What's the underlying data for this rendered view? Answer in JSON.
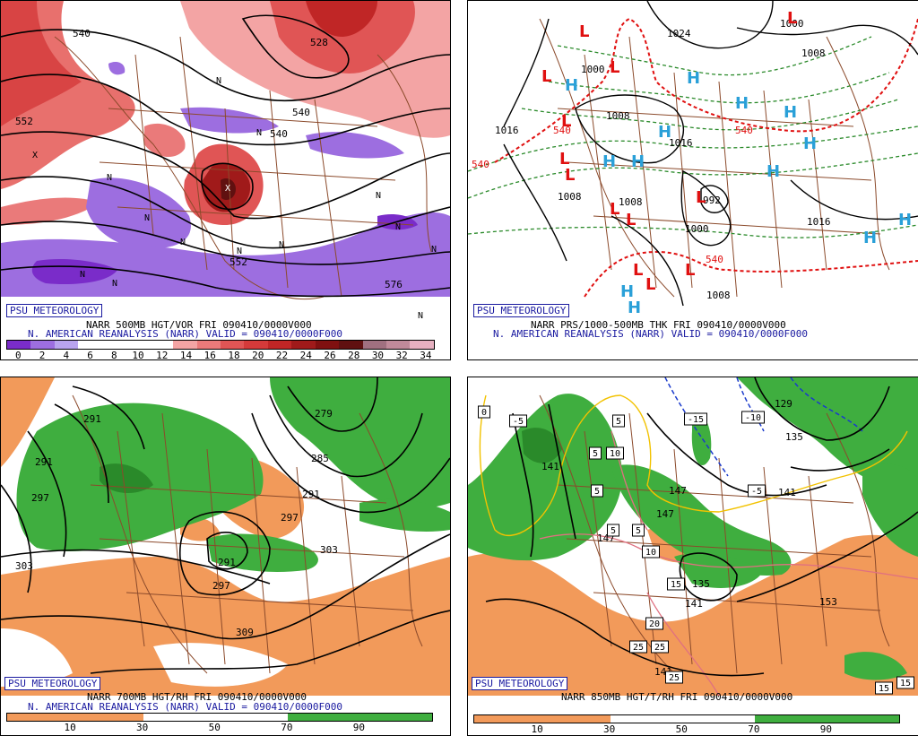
{
  "panels": {
    "vor": {
      "badge": "PSU METEOROLOGY",
      "title_line1": "NARR 500MB HGT/VOR FRI 090410/0000V000",
      "title_line2": "N. AMERICAN REANALYSIS (NARR) VALID = 090410/0000F000",
      "colorbar_labels": [
        "0",
        "2",
        "4",
        "6",
        "8",
        "10",
        "12",
        "14",
        "16",
        "18",
        "20",
        "22",
        "24",
        "26",
        "28",
        "30",
        "32",
        "34"
      ],
      "contour_labels": [
        "540",
        "528",
        "552",
        "540",
        "540",
        "552",
        "576"
      ],
      "markers": [
        "N",
        "N",
        "N",
        "N",
        "N",
        "N",
        "N",
        "N",
        "N",
        "N",
        "N",
        "N",
        "N",
        "X",
        "X"
      ]
    },
    "thk": {
      "badge": "PSU METEOROLOGY",
      "title_line1": "NARR PRS/1000-500MB THK FRI 090410/0000V000",
      "title_line2": "N. AMERICAN REANALYSIS (NARR) VALID = 090410/0000F000",
      "contour_labels": [
        "1024",
        "1000",
        "1008",
        "1000",
        "1016",
        "1008",
        "1016",
        "1008",
        "1008",
        "992",
        "1000",
        "1016",
        "1008",
        "540",
        "540",
        "540",
        "540"
      ],
      "highs": [
        "H",
        "H",
        "H",
        "H",
        "H",
        "H",
        "H",
        "H",
        "H",
        "H",
        "H",
        "H",
        "H"
      ],
      "lows": [
        "L",
        "L",
        "L",
        "L",
        "L",
        "L",
        "L",
        "L",
        "L",
        "L",
        "L",
        "L",
        "L"
      ]
    },
    "rh700": {
      "badge": "PSU METEOROLOGY",
      "title_line1": "NARR 700MB HGT/RH FRI 090410/0000V000",
      "title_line2": "N. AMERICAN REANALYSIS (NARR) VALID = 090410/0000F000",
      "colorbar_labels": [
        "10",
        "30",
        "50",
        "70",
        "90"
      ],
      "contour_labels": [
        "291",
        "291",
        "297",
        "279",
        "285",
        "291",
        "297",
        "303",
        "303",
        "291",
        "297",
        "309"
      ]
    },
    "t850": {
      "badge": "PSU METEOROLOGY",
      "title_line1": "NARR 850MB HGT/T/RH FRI 090410/0000V000",
      "colorbar_labels": [
        "10",
        "30",
        "50",
        "70",
        "90"
      ],
      "contour_labels": [
        "129",
        "135",
        "141",
        "147",
        "141",
        "147",
        "135",
        "141",
        "153",
        "147",
        "141"
      ],
      "temp_boxes": [
        "0",
        "-5",
        "5",
        "5",
        "-15",
        "-10",
        "-5",
        "10",
        "5",
        "5",
        "5",
        "10",
        "15",
        "20",
        "25",
        "25",
        "25",
        "15",
        "15"
      ]
    }
  },
  "colors": {
    "vor_scale": [
      "#7a2cc9",
      "#9d6ee0",
      "#b9a4ee",
      "#ffffff",
      "#ffffff",
      "#ffffff",
      "#ffffff",
      "#f3a4a4",
      "#ea7a7a",
      "#e05555",
      "#d43a3a",
      "#c02626",
      "#a01a1a",
      "#801010",
      "#601010",
      "#a07080",
      "#c08a9a",
      "#e6b0c0"
    ],
    "rh_dry": "#f29a5a",
    "rh_moist": "#3fae3f",
    "map_lines": "#8b4a2b",
    "contour": "#000000",
    "high": "#2aa0d8",
    "low": "#e01010"
  }
}
